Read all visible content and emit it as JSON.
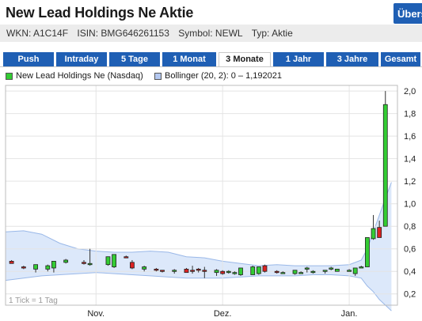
{
  "header": {
    "title": "New Lead Holdings Ne Aktie",
    "overview_label": "Übersicht"
  },
  "meta": {
    "wkn": "WKN: A1C14F",
    "isin": "ISIN: BMG646261153",
    "symbol": "Symbol: NEWL",
    "type": "Typ: Aktie"
  },
  "tabs": [
    {
      "label": "Push",
      "active": false
    },
    {
      "label": "Intraday",
      "active": false
    },
    {
      "label": "5 Tage",
      "active": false
    },
    {
      "label": "1 Monat",
      "active": false
    },
    {
      "label": "3 Monate",
      "active": true
    },
    {
      "label": "1 Jahr",
      "active": false
    },
    {
      "label": "3 Jahre",
      "active": false
    },
    {
      "label": "Gesamt",
      "active": false
    }
  ],
  "legend": {
    "series_label": "New Lead Holdings Ne (Nasdaq)",
    "series_color": "#33cc33",
    "bollinger_label": "Bollinger (20, 2): 0 – 1,192021",
    "bollinger_color": "#b4c8f0"
  },
  "chart_data": {
    "type": "candlestick",
    "title": "",
    "xlabel": "",
    "ylabel": "",
    "ylim": [
      0.1,
      2.05
    ],
    "yticks": [
      "0,2",
      "0,4",
      "0,6",
      "0,8",
      "1,0",
      "1,2",
      "1,4",
      "1,6",
      "1,8",
      "2,0"
    ],
    "xticks": [
      "Nov.",
      "Dez.",
      "Jan."
    ],
    "tick_note": "1 Tick = 1 Tag",
    "grid": true,
    "up_color": "#33cc33",
    "down_color": "#dd2222",
    "band_fill": "#dce8fa",
    "band_line": "#9ab8e8",
    "x_range": [
      0,
      65
    ],
    "x_tick_positions": [
      15,
      36,
      57
    ],
    "candles": [
      {
        "x": 1,
        "o": 0.49,
        "h": 0.5,
        "l": 0.48,
        "c": 0.47
      },
      {
        "x": 3,
        "o": 0.44,
        "h": 0.45,
        "l": 0.42,
        "c": 0.43
      },
      {
        "x": 5,
        "o": 0.42,
        "h": 0.46,
        "l": 0.39,
        "c": 0.46
      },
      {
        "x": 7,
        "o": 0.42,
        "h": 0.46,
        "l": 0.4,
        "c": 0.45
      },
      {
        "x": 8,
        "o": 0.43,
        "h": 0.48,
        "l": 0.39,
        "c": 0.49
      },
      {
        "x": 10,
        "o": 0.48,
        "h": 0.51,
        "l": 0.47,
        "c": 0.5
      },
      {
        "x": 13,
        "o": 0.48,
        "h": 0.5,
        "l": 0.46,
        "c": 0.47
      },
      {
        "x": 14,
        "o": 0.46,
        "h": 0.6,
        "l": 0.45,
        "c": 0.47
      },
      {
        "x": 17,
        "o": 0.46,
        "h": 0.53,
        "l": 0.45,
        "c": 0.53
      },
      {
        "x": 18,
        "o": 0.44,
        "h": 0.55,
        "l": 0.43,
        "c": 0.55
      },
      {
        "x": 20,
        "o": 0.53,
        "h": 0.54,
        "l": 0.52,
        "c": 0.52
      },
      {
        "x": 21,
        "o": 0.48,
        "h": 0.5,
        "l": 0.42,
        "c": 0.43
      },
      {
        "x": 23,
        "o": 0.42,
        "h": 0.45,
        "l": 0.4,
        "c": 0.44
      },
      {
        "x": 25,
        "o": 0.42,
        "h": 0.43,
        "l": 0.4,
        "c": 0.41
      },
      {
        "x": 26,
        "o": 0.41,
        "h": 0.41,
        "l": 0.39,
        "c": 0.4
      },
      {
        "x": 28,
        "o": 0.41,
        "h": 0.42,
        "l": 0.38,
        "c": 0.41
      },
      {
        "x": 30,
        "o": 0.42,
        "h": 0.43,
        "l": 0.4,
        "c": 0.39
      },
      {
        "x": 31,
        "o": 0.41,
        "h": 0.45,
        "l": 0.38,
        "c": 0.4
      },
      {
        "x": 32,
        "o": 0.42,
        "h": 0.43,
        "l": 0.39,
        "c": 0.41
      },
      {
        "x": 33,
        "o": 0.41,
        "h": 0.44,
        "l": 0.34,
        "c": 0.4
      },
      {
        "x": 35,
        "o": 0.39,
        "h": 0.42,
        "l": 0.36,
        "c": 0.41
      },
      {
        "x": 36,
        "o": 0.4,
        "h": 0.41,
        "l": 0.37,
        "c": 0.38
      },
      {
        "x": 37,
        "o": 0.39,
        "h": 0.41,
        "l": 0.38,
        "c": 0.4
      },
      {
        "x": 38,
        "o": 0.38,
        "h": 0.4,
        "l": 0.37,
        "c": 0.39
      },
      {
        "x": 39,
        "o": 0.37,
        "h": 0.42,
        "l": 0.36,
        "c": 0.43
      },
      {
        "x": 41,
        "o": 0.37,
        "h": 0.45,
        "l": 0.37,
        "c": 0.44
      },
      {
        "x": 42,
        "o": 0.38,
        "h": 0.44,
        "l": 0.37,
        "c": 0.44
      },
      {
        "x": 43,
        "o": 0.45,
        "h": 0.46,
        "l": 0.39,
        "c": 0.4
      },
      {
        "x": 45,
        "o": 0.4,
        "h": 0.41,
        "l": 0.38,
        "c": 0.39
      },
      {
        "x": 46,
        "o": 0.39,
        "h": 0.4,
        "l": 0.38,
        "c": 0.39
      },
      {
        "x": 48,
        "o": 0.38,
        "h": 0.41,
        "l": 0.37,
        "c": 0.41
      },
      {
        "x": 49,
        "o": 0.39,
        "h": 0.4,
        "l": 0.38,
        "c": 0.39
      },
      {
        "x": 50,
        "o": 0.42,
        "h": 0.44,
        "l": 0.39,
        "c": 0.43
      },
      {
        "x": 51,
        "o": 0.39,
        "h": 0.41,
        "l": 0.38,
        "c": 0.4
      },
      {
        "x": 53,
        "o": 0.4,
        "h": 0.41,
        "l": 0.38,
        "c": 0.41
      },
      {
        "x": 54,
        "o": 0.42,
        "h": 0.44,
        "l": 0.41,
        "c": 0.43
      },
      {
        "x": 55,
        "o": 0.4,
        "h": 0.42,
        "l": 0.4,
        "c": 0.42
      },
      {
        "x": 57,
        "o": 0.41,
        "h": 0.42,
        "l": 0.4,
        "c": 0.41
      },
      {
        "x": 58,
        "o": 0.38,
        "h": 0.43,
        "l": 0.36,
        "c": 0.43
      },
      {
        "x": 59,
        "o": 0.44,
        "h": 0.45,
        "l": 0.43,
        "c": 0.44
      },
      {
        "x": 60,
        "o": 0.44,
        "h": 0.7,
        "l": 0.44,
        "c": 0.7
      },
      {
        "x": 61,
        "o": 0.69,
        "h": 0.9,
        "l": 0.68,
        "c": 0.78
      },
      {
        "x": 62,
        "o": 0.79,
        "h": 0.85,
        "l": 0.7,
        "c": 0.7
      },
      {
        "x": 63,
        "o": 0.8,
        "h": 2.0,
        "l": 0.8,
        "c": 1.88
      }
    ],
    "bollinger": {
      "x": [
        0,
        3,
        6,
        9,
        12,
        15,
        18,
        21,
        24,
        27,
        30,
        33,
        36,
        39,
        42,
        45,
        48,
        51,
        54,
        57,
        59,
        60,
        61,
        62,
        63,
        64
      ],
      "upper": [
        0.75,
        0.76,
        0.73,
        0.65,
        0.6,
        0.58,
        0.57,
        0.57,
        0.58,
        0.57,
        0.53,
        0.52,
        0.49,
        0.47,
        0.45,
        0.46,
        0.45,
        0.45,
        0.45,
        0.46,
        0.5,
        0.6,
        0.75,
        0.9,
        1.05,
        1.19
      ],
      "lower": [
        0.32,
        0.34,
        0.36,
        0.37,
        0.38,
        0.39,
        0.38,
        0.37,
        0.36,
        0.35,
        0.34,
        0.34,
        0.34,
        0.35,
        0.36,
        0.36,
        0.36,
        0.37,
        0.37,
        0.36,
        0.34,
        0.27,
        0.22,
        0.15,
        0.1,
        0.05
      ]
    }
  }
}
